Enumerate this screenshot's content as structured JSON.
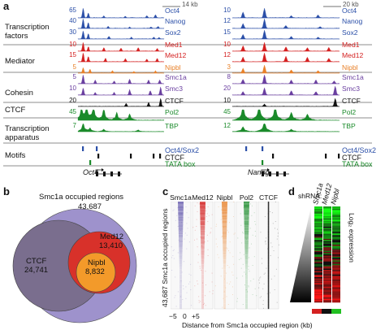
{
  "panels": {
    "a": "a",
    "b": "b",
    "c": "c",
    "d": "d"
  },
  "panel_a": {
    "left_scale_label": "14 kb",
    "right_scale_label": "20 kb",
    "categories": {
      "tf": "Transcription\nfactors",
      "mediator": "Mediator",
      "cohesin": "Cohesin",
      "ctcf": "CTCF",
      "txapp": "Transcription\napparatus",
      "motifs": "Motifs"
    },
    "tracks": [
      {
        "name": "Oct4",
        "color": "#2b4fa8",
        "left_max": "65",
        "right_max": "10"
      },
      {
        "name": "Nanog",
        "color": "#2b4fa8",
        "left_max": "40",
        "right_max": "12"
      },
      {
        "name": "Sox2",
        "color": "#2b4fa8",
        "left_max": "30",
        "right_max": "15"
      },
      {
        "name": "Med1",
        "color": "#d42020",
        "left_max": "10",
        "right_max": "10"
      },
      {
        "name": "Med12",
        "color": "#d42020",
        "left_max": "15",
        "right_max": "12"
      },
      {
        "name": "Nipbl",
        "color": "#e8812a",
        "left_max": "5",
        "right_max": "3"
      },
      {
        "name": "Smc1a",
        "color": "#6a3fa0",
        "left_max": "5",
        "right_max": "8"
      },
      {
        "name": "Smc3",
        "color": "#6a3fa0",
        "left_max": "10",
        "right_max": "20"
      },
      {
        "name": "CTCF",
        "color": "#111111",
        "left_max": "20",
        "right_max": "10"
      },
      {
        "name": "Pol2",
        "color": "#1a8a2a",
        "left_max": "45",
        "right_max": "45"
      },
      {
        "name": "TBP",
        "color": "#1a8a2a",
        "left_max": "7",
        "right_max": "12"
      }
    ],
    "motif_labels": [
      {
        "name": "Oct4/Sox2",
        "color": "#2b4fa8"
      },
      {
        "name": "CTCF",
        "color": "#111111"
      },
      {
        "name": "TATA box",
        "color": "#1a8a2a"
      }
    ],
    "left_gene": "Oct4",
    "right_gene": "Nanog"
  },
  "panel_b": {
    "outer_title": "Smc1a occupied regions",
    "outer_count": "43,687",
    "ctcf_label": "CTCF",
    "ctcf_count": "24,741",
    "med12_label": "Med12",
    "med12_count": "13,410",
    "nipbl_label": "Nipbl",
    "nipbl_count": "8,832",
    "colors": {
      "outer": "#9e92cc",
      "ctcf": "#7a6e8e",
      "med12": "#d8312a",
      "nipbl": "#f39a2a"
    }
  },
  "panel_c": {
    "columns": [
      "Smc1a",
      "Med12",
      "Nipbl",
      "Pol2",
      "CTCF"
    ],
    "y_label": "43,687 Smc1a occupied regions",
    "x_ticks": [
      "−5",
      "0",
      "+5"
    ],
    "x_label": "Distance from Smc1a occupied region (kb)"
  },
  "panel_d": {
    "shrna_label": "shRNA:",
    "columns": [
      "Smc1a",
      "Med12",
      "Nipbl"
    ],
    "y_label": "Log₂ expression"
  }
}
